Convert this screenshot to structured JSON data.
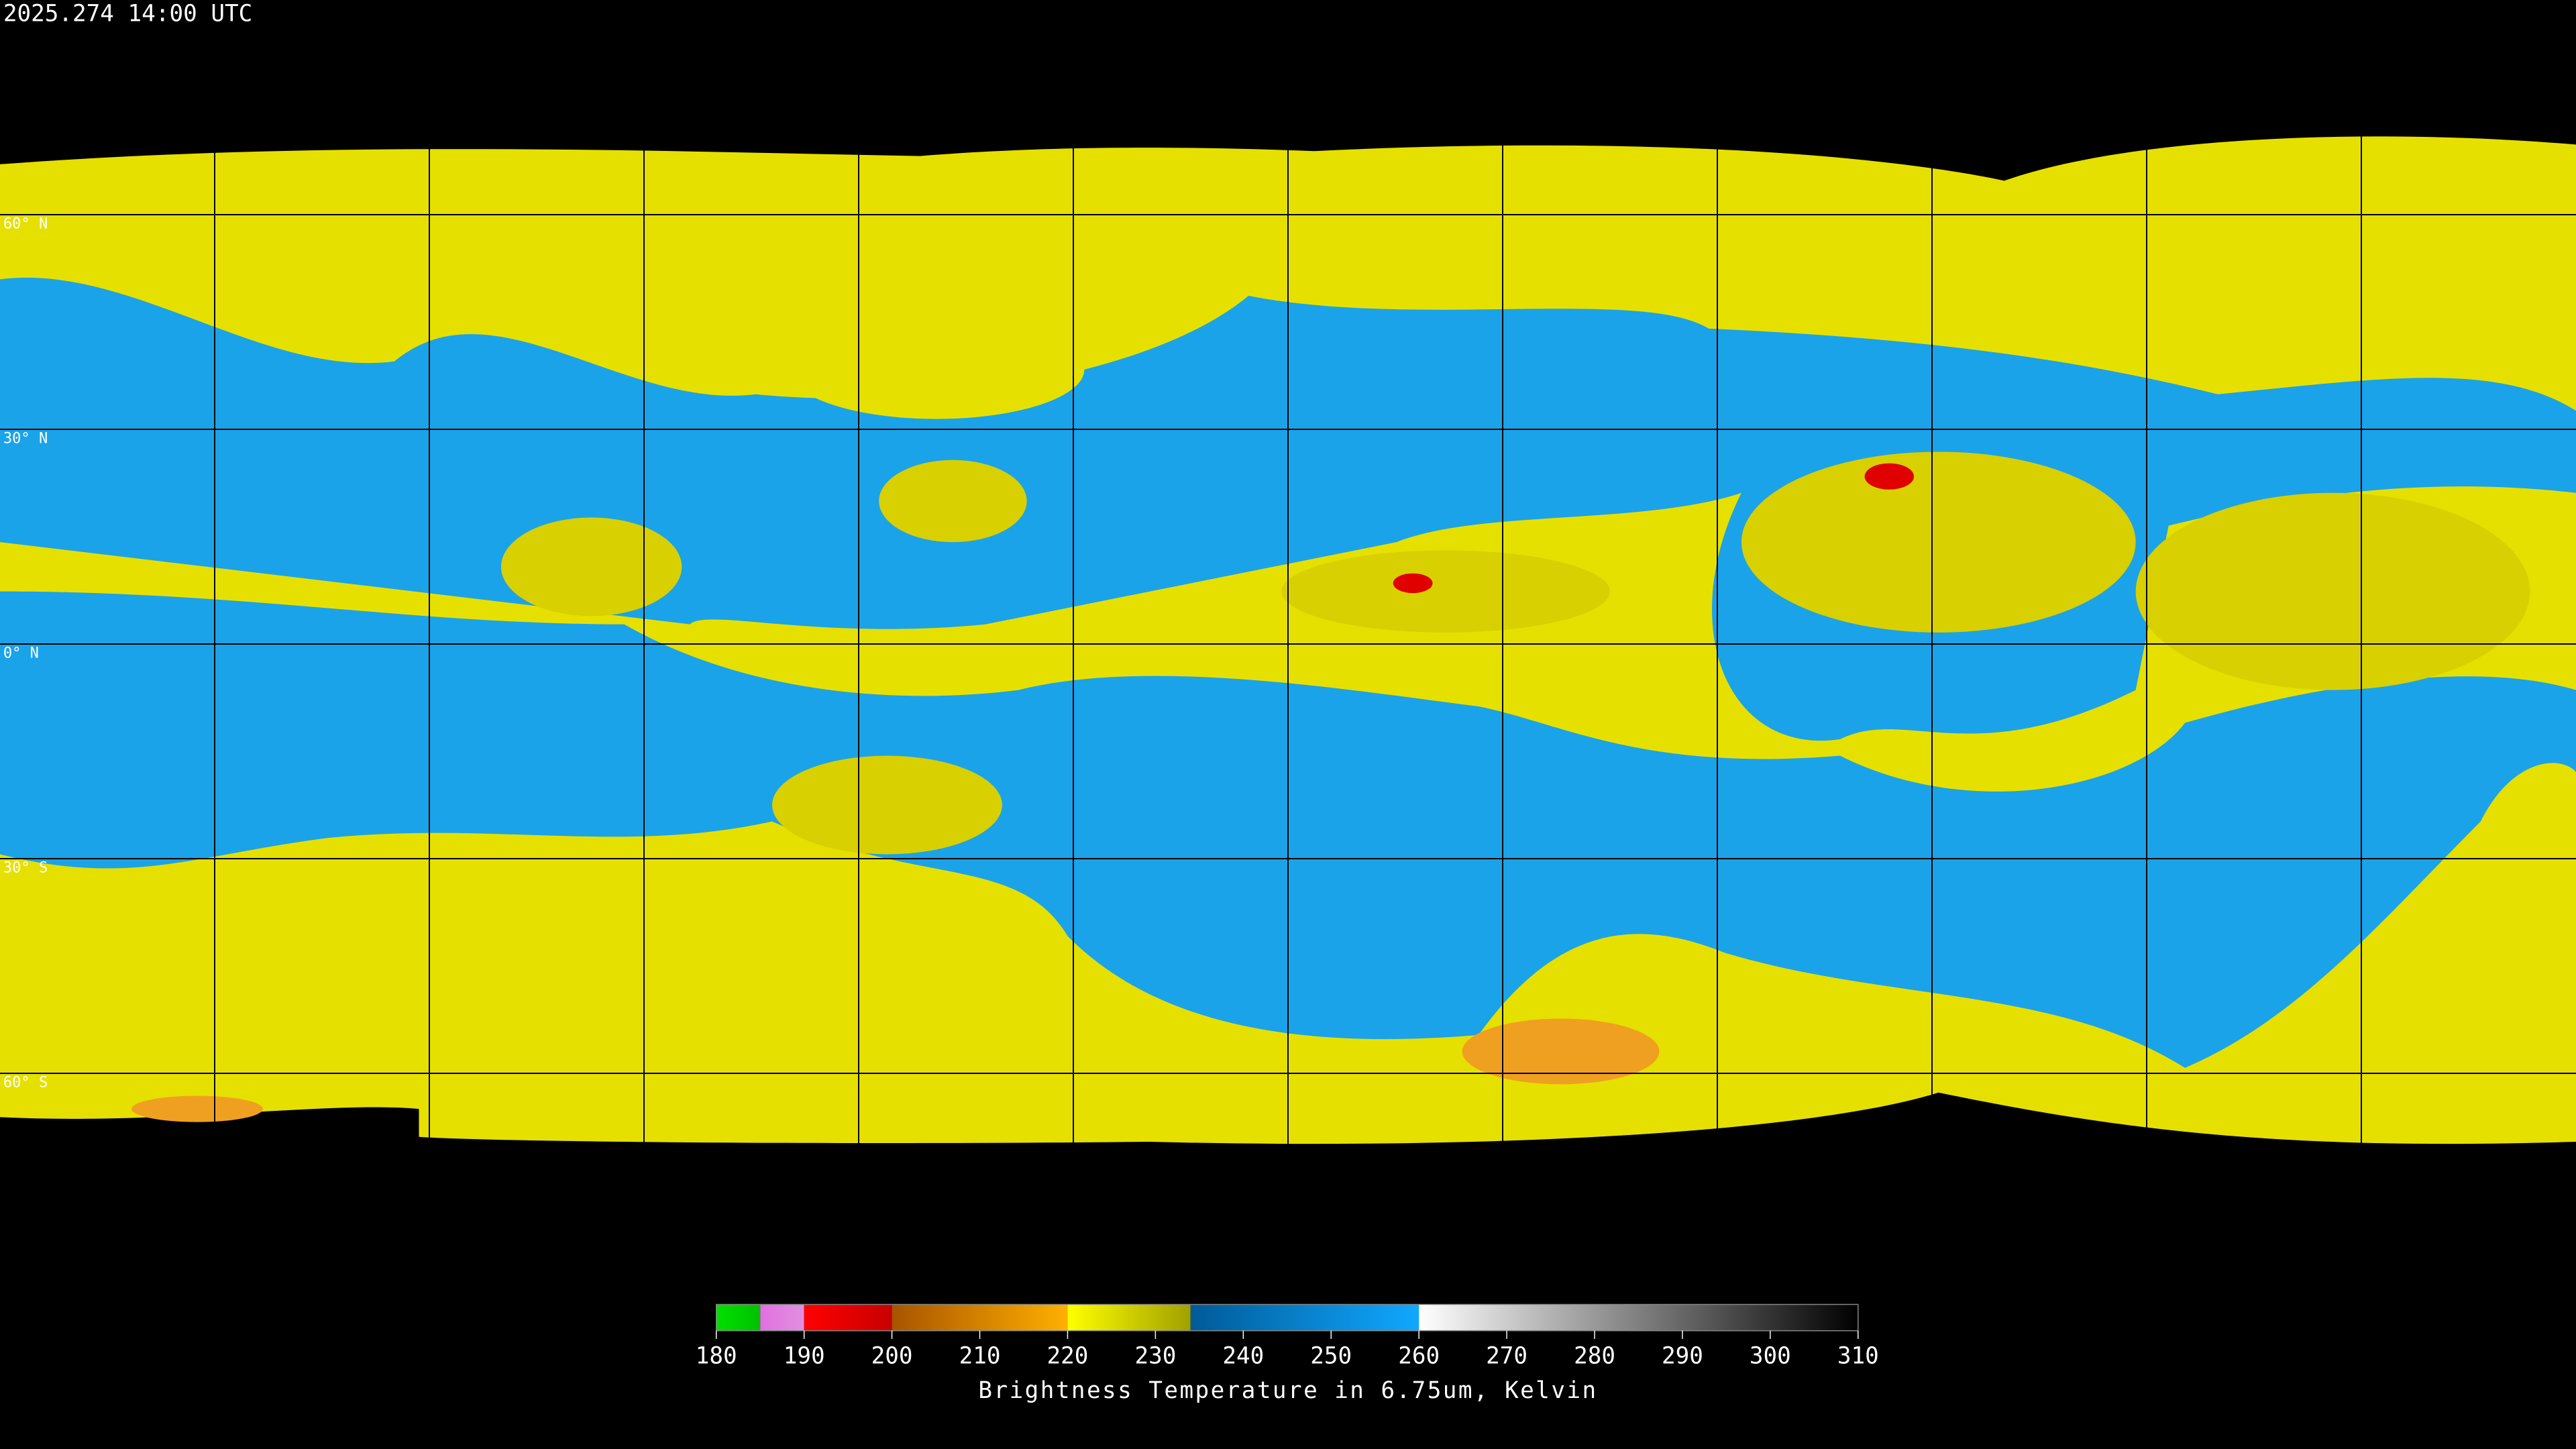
{
  "timestamp": "2025.274 14:00 UTC",
  "lat_labels": [
    "60° N",
    "30° N",
    "0° N",
    "30° S",
    "60° S"
  ],
  "colorbar": {
    "label": "Brightness Temperature in 6.75um, Kelvin",
    "lim": [
      180,
      310
    ],
    "ticks": [
      180,
      190,
      200,
      210,
      220,
      230,
      240,
      250,
      260,
      270,
      280,
      290,
      300,
      310
    ],
    "segments": [
      {
        "from": 180,
        "to": 185,
        "colors": [
          "#00e000",
          "#00c000"
        ]
      },
      {
        "from": 185,
        "to": 190,
        "colors": [
          "#e070e0",
          "#e090e0"
        ]
      },
      {
        "from": 190,
        "to": 200,
        "colors": [
          "#ff0000",
          "#c80000"
        ]
      },
      {
        "from": 200,
        "to": 220,
        "colors": [
          "#a85400",
          "#ffb000"
        ]
      },
      {
        "from": 220,
        "to": 234,
        "colors": [
          "#ffff00",
          "#a0a000"
        ]
      },
      {
        "from": 234,
        "to": 260,
        "colors": [
          "#005a98",
          "#10a8ff"
        ]
      },
      {
        "from": 260,
        "to": 310,
        "colors": [
          "#ffffff",
          "#000000"
        ]
      }
    ]
  }
}
